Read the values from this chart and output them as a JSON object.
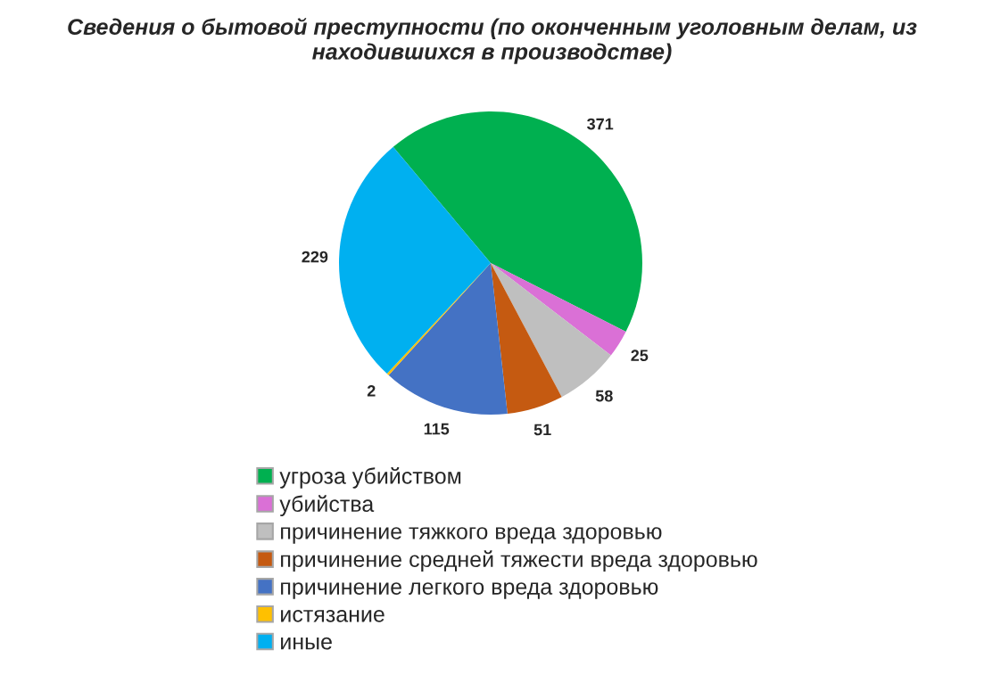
{
  "chart_data": {
    "type": "pie",
    "title": "Сведения о бытовой преступности (по оконченным уголовным делам, из находившихся в производстве)",
    "categories": [
      "угроза убийством",
      "убийства",
      "причинение тяжкого вреда здоровью",
      "причинение средней тяжести вреда здоровью",
      "причинение легкого вреда здоровью",
      "истязание",
      "иные"
    ],
    "values": [
      371,
      25,
      58,
      51,
      115,
      2,
      229
    ],
    "colors": [
      "#00b050",
      "#da70d6",
      "#bfbfbf",
      "#c55a11",
      "#4472c4",
      "#ffc000",
      "#00b0f0"
    ],
    "data_labels": true,
    "legend": "bottom"
  }
}
